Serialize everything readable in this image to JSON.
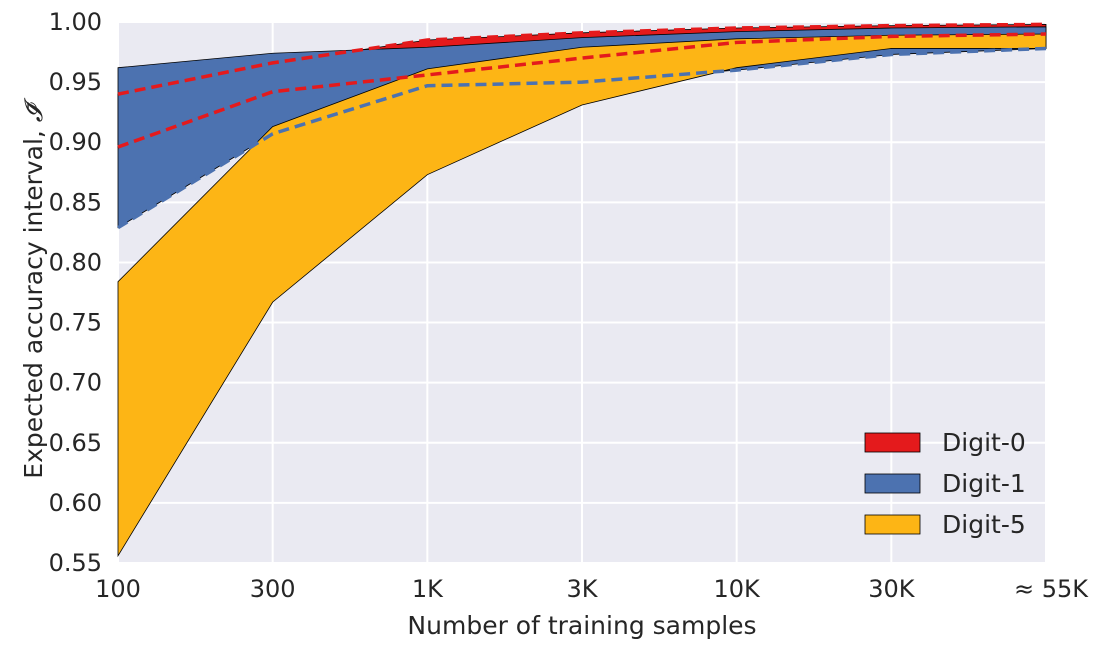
{
  "chart_data": {
    "type": "area",
    "title": "",
    "xlabel": "Number of training samples",
    "ylabel": "Expected accuracy interval, ",
    "ylabel_symbol": "𝓘̄",
    "categories": [
      "100",
      "300",
      "1K",
      "3K",
      "10K",
      "30K",
      "≈ 55K"
    ],
    "y_ticks": [
      "0.55",
      "0.60",
      "0.65",
      "0.70",
      "0.75",
      "0.80",
      "0.85",
      "0.90",
      "0.95",
      "1.00"
    ],
    "ylim": [
      0.55,
      1.0
    ],
    "grid": true,
    "legend_position": "bottom-right",
    "series": [
      {
        "name": "Digit-0",
        "color": "#e41a1c",
        "upper": [
          0.94,
          0.966,
          0.985,
          0.991,
          0.995,
          0.997,
          0.998
        ],
        "lower": [
          0.896,
          0.942,
          0.956,
          0.97,
          0.983,
          0.988,
          0.99
        ],
        "dashed_bounds": true
      },
      {
        "name": "Digit-1",
        "color": "#4c72b0",
        "upper": [
          0.962,
          0.974,
          0.979,
          0.987,
          0.992,
          0.995,
          0.996
        ],
        "lower": [
          0.829,
          0.907,
          0.947,
          0.95,
          0.96,
          0.973,
          0.978
        ],
        "dashed_lower": true
      },
      {
        "name": "Digit-5",
        "color": "#fdb515",
        "upper": [
          0.784,
          0.913,
          0.961,
          0.979,
          0.986,
          0.989,
          0.99
        ],
        "lower": [
          0.556,
          0.767,
          0.873,
          0.931,
          0.962,
          0.978,
          0.978
        ]
      }
    ]
  }
}
